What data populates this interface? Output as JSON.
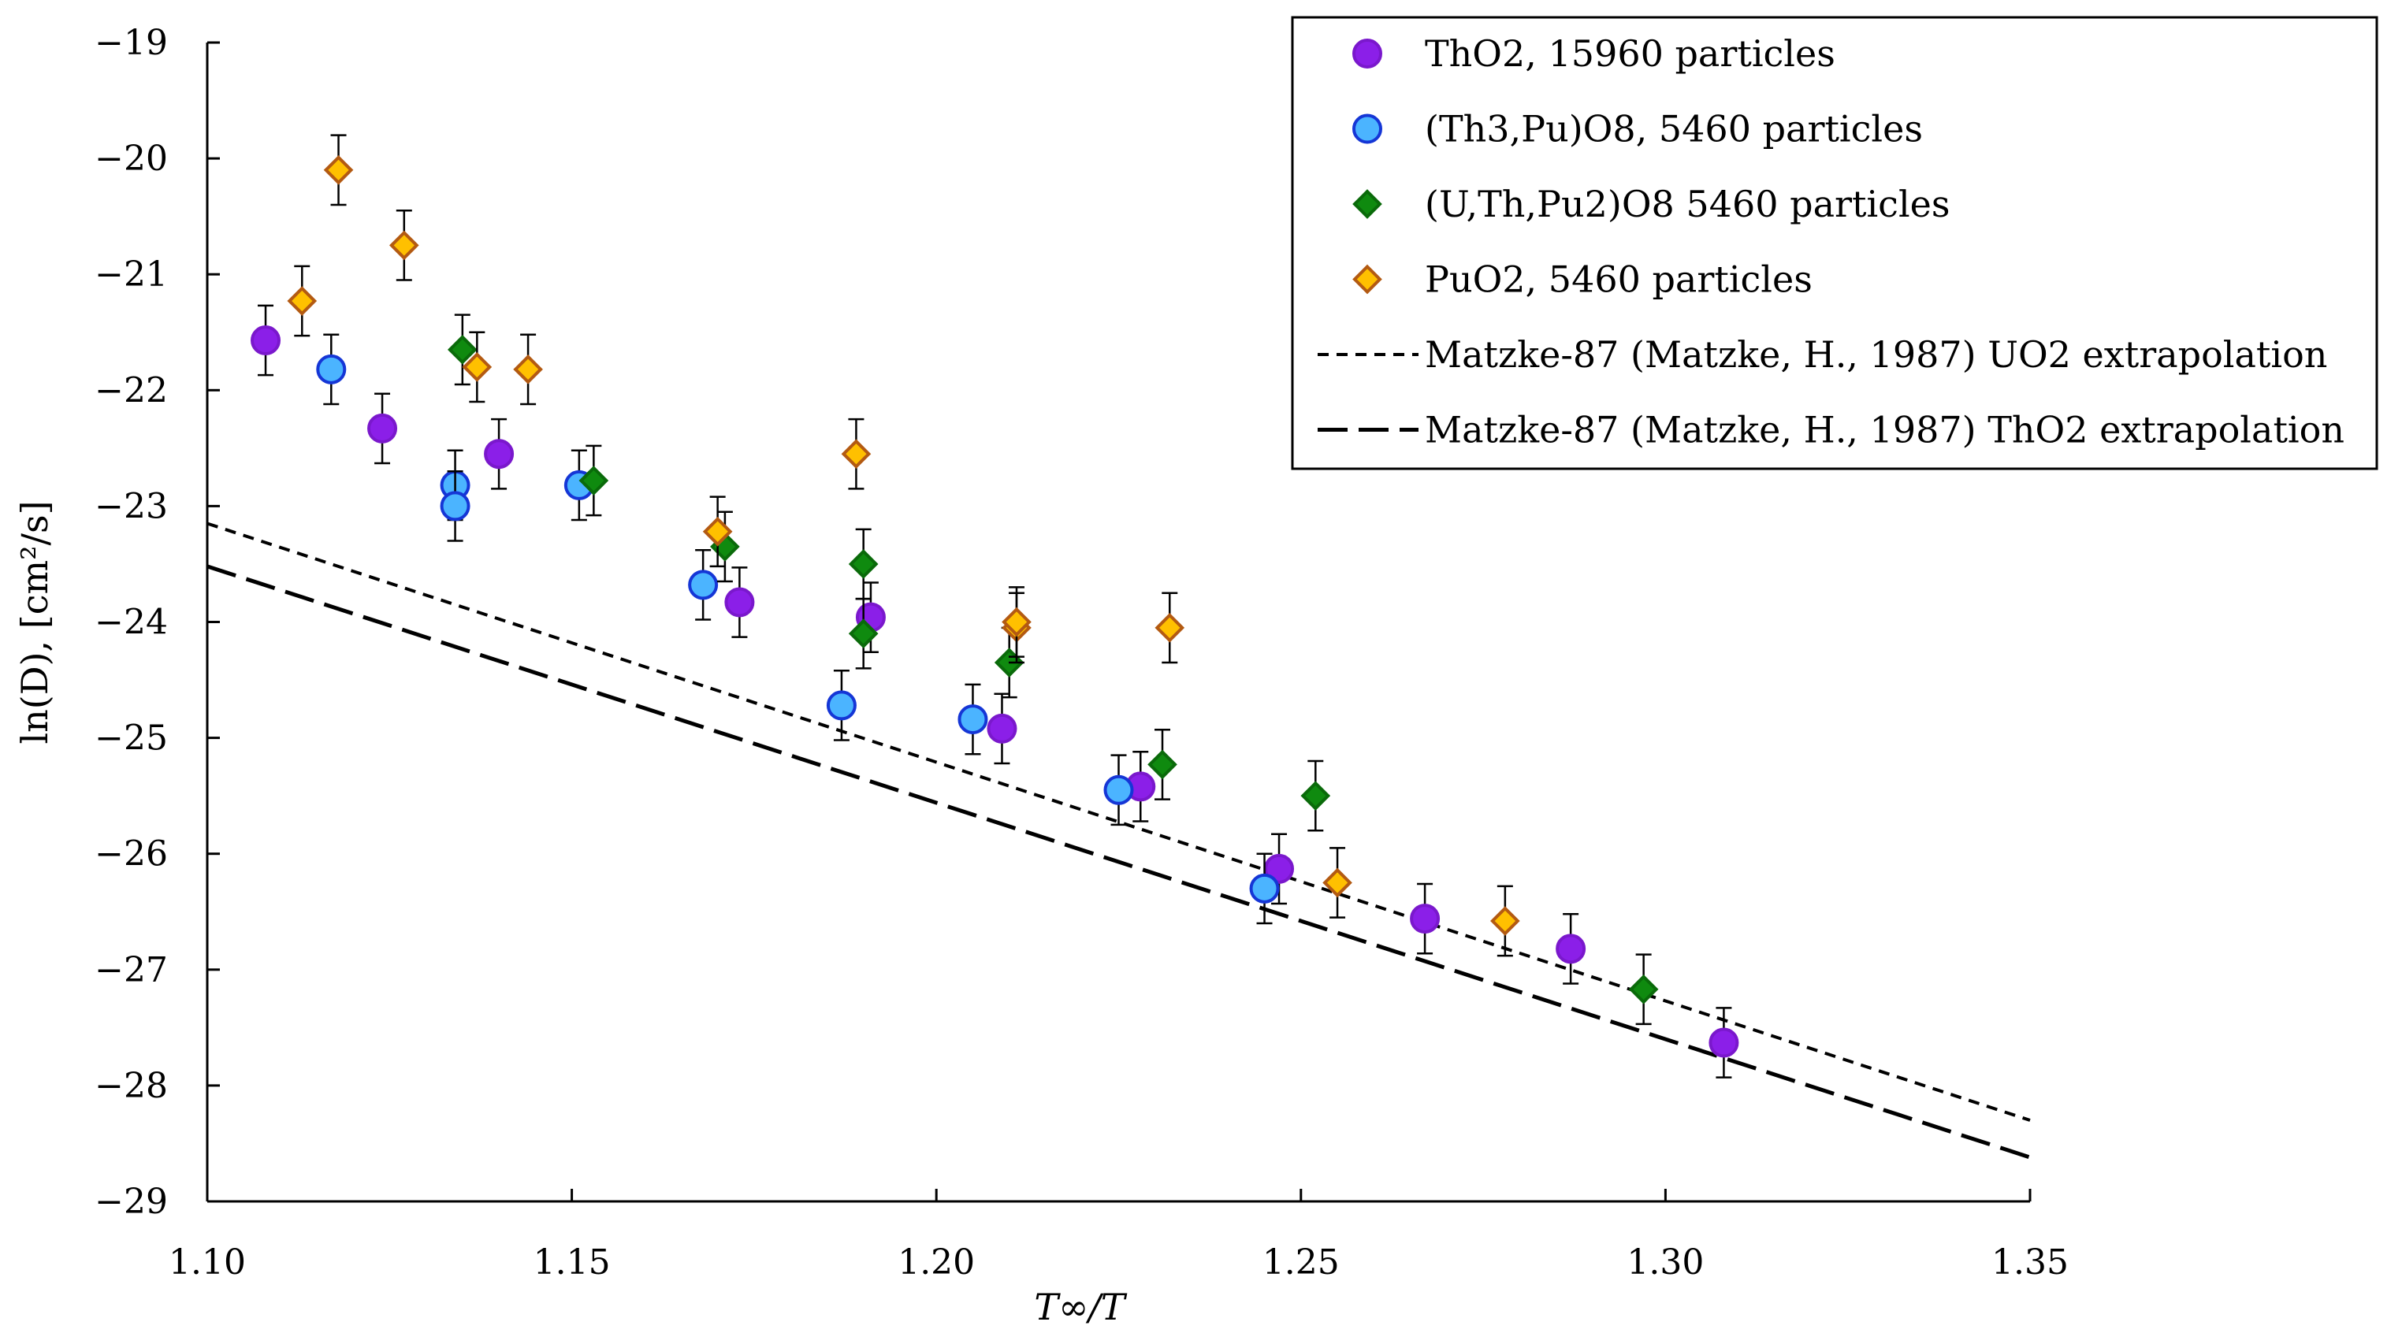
{
  "chart_data": {
    "type": "scatter",
    "xlabel": "T∞/T",
    "ylabel": "ln(D), [cm²/s]",
    "xlim": [
      1.1,
      1.35
    ],
    "ylim": [
      -29,
      -19
    ],
    "xticks": [
      "1.10",
      "1.15",
      "1.20",
      "1.25",
      "1.30",
      "1.35"
    ],
    "xtick_values": [
      1.1,
      1.15,
      1.2,
      1.25,
      1.3,
      1.35
    ],
    "yticks": [
      "−19",
      "−20",
      "−21",
      "−22",
      "−23",
      "−24",
      "−25",
      "−26",
      "−27",
      "−28",
      "−29"
    ],
    "ytick_values": [
      -19,
      -20,
      -21,
      -22,
      -23,
      -24,
      -25,
      -26,
      -27,
      -28,
      -29
    ],
    "error_bar": 0.3,
    "series": [
      {
        "name": "ThO2, 15960 particles",
        "marker": "circle",
        "color": "#8B1FE8",
        "stroke": "#7a18cc",
        "x": [
          1.108,
          1.124,
          1.14,
          1.173,
          1.191,
          1.209,
          1.228,
          1.247,
          1.267,
          1.287,
          1.308
        ],
        "y": [
          -21.57,
          -22.33,
          -22.55,
          -23.83,
          -23.96,
          -24.92,
          -25.42,
          -26.13,
          -26.56,
          -26.82,
          -27.63
        ]
      },
      {
        "name": "(Th3,Pu)O8, 5460 particles",
        "marker": "circle",
        "color": "#4BB4FF",
        "stroke": "#1536d6",
        "x": [
          1.117,
          1.134,
          1.134,
          1.151,
          1.168,
          1.187,
          1.205,
          1.225,
          1.245
        ],
        "y": [
          -21.82,
          -22.82,
          -23.0,
          -22.82,
          -23.68,
          -24.72,
          -24.84,
          -25.45,
          -26.3
        ]
      },
      {
        "name": "(U,Th,Pu2)O8 5460 particles",
        "marker": "diamond",
        "color": "#0f8a0f",
        "stroke": "#0a6a0a",
        "x": [
          1.135,
          1.153,
          1.171,
          1.19,
          1.19,
          1.21,
          1.231,
          1.252,
          1.297
        ],
        "y": [
          -21.65,
          -22.78,
          -23.35,
          -23.5,
          -24.1,
          -24.35,
          -25.23,
          -25.5,
          -27.17
        ]
      },
      {
        "name": "PuO2, 5460 particles",
        "marker": "diamond",
        "color": "#FFC000",
        "stroke": "#b35a12",
        "x": [
          1.113,
          1.118,
          1.127,
          1.137,
          1.144,
          1.17,
          1.189,
          1.211,
          1.211,
          1.232,
          1.255,
          1.278
        ],
        "y": [
          -21.23,
          -20.1,
          -20.75,
          -21.8,
          -21.82,
          -23.22,
          -22.55,
          -24.05,
          -24.0,
          -24.05,
          -26.25,
          -26.58
        ]
      }
    ],
    "lines": [
      {
        "name": "Matzke-87 (Matzke, H., 1987) UO2 extrapolation",
        "style": "short-dash",
        "color": "#000000",
        "x": [
          1.1,
          1.35
        ],
        "y": [
          -23.15,
          -28.3
        ]
      },
      {
        "name": "Matzke-87 (Matzke, H., 1987) ThO2 extrapolation",
        "style": "long-dash",
        "color": "#000000",
        "x": [
          1.1,
          1.35
        ],
        "y": [
          -23.52,
          -28.62
        ]
      }
    ],
    "legend_position": "top-right"
  }
}
